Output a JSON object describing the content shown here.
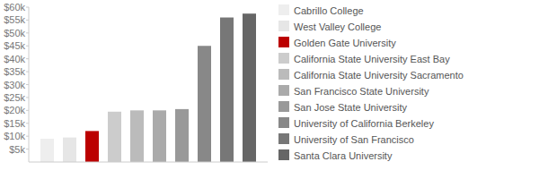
{
  "chart_data": {
    "type": "bar",
    "categories": [
      "Cabrillo College",
      "West Valley College",
      "Golden Gate University",
      "California State University East Bay",
      "California State University Sacramento",
      "San Francisco State University",
      "San Jose State University",
      "University of California Berkeley",
      "University of San Francisco",
      "Santa Clara University"
    ],
    "values": [
      9000,
      9500,
      12000,
      19500,
      20000,
      20000,
      20500,
      45000,
      56000,
      57500
    ],
    "colors": [
      "#eeeeee",
      "#e6e6e6",
      "#bb0000",
      "#cccccc",
      "#bbbbbb",
      "#aaaaaa",
      "#999999",
      "#888888",
      "#777777",
      "#666666"
    ],
    "ylim": [
      0,
      60000
    ],
    "yticks": [
      {
        "value": 5000,
        "label": "$5k"
      },
      {
        "value": 10000,
        "label": "$10k"
      },
      {
        "value": 15000,
        "label": "$15k"
      },
      {
        "value": 20000,
        "label": "$20k"
      },
      {
        "value": 25000,
        "label": "$25k"
      },
      {
        "value": 30000,
        "label": "$30k"
      },
      {
        "value": 35000,
        "label": "$35k"
      },
      {
        "value": 40000,
        "label": "$40k"
      },
      {
        "value": 45000,
        "label": "$45k"
      },
      {
        "value": 50000,
        "label": "$50k"
      },
      {
        "value": 55000,
        "label": "$55k"
      },
      {
        "value": 60000,
        "label": "$60k"
      }
    ],
    "legend": "right",
    "tick_labels": "y"
  }
}
